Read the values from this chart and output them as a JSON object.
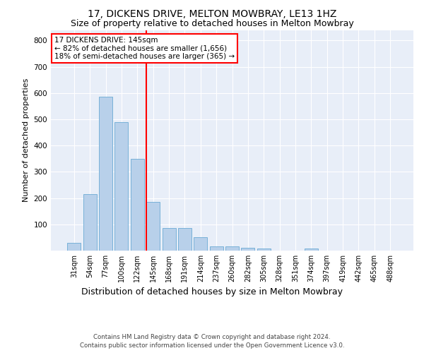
{
  "title": "17, DICKENS DRIVE, MELTON MOWBRAY, LE13 1HZ",
  "subtitle": "Size of property relative to detached houses in Melton Mowbray",
  "xlabel": "Distribution of detached houses by size in Melton Mowbray",
  "ylabel": "Number of detached properties",
  "categories": [
    "31sqm",
    "54sqm",
    "77sqm",
    "100sqm",
    "122sqm",
    "145sqm",
    "168sqm",
    "191sqm",
    "214sqm",
    "237sqm",
    "260sqm",
    "282sqm",
    "305sqm",
    "328sqm",
    "351sqm",
    "374sqm",
    "397sqm",
    "419sqm",
    "442sqm",
    "465sqm",
    "488sqm"
  ],
  "values": [
    30,
    215,
    585,
    490,
    350,
    185,
    85,
    85,
    50,
    15,
    15,
    12,
    8,
    0,
    0,
    7,
    0,
    0,
    0,
    0,
    0
  ],
  "bar_color": "#b8d0ea",
  "bar_edge_color": "#6aaad4",
  "red_line_index": 5,
  "annotation_line1": "17 DICKENS DRIVE: 145sqm",
  "annotation_line2": "← 82% of detached houses are smaller (1,656)",
  "annotation_line3": "18% of semi-detached houses are larger (365) →",
  "ylim": [
    0,
    840
  ],
  "yticks": [
    0,
    100,
    200,
    300,
    400,
    500,
    600,
    700,
    800
  ],
  "background_color": "#e8eef8",
  "footer1": "Contains HM Land Registry data © Crown copyright and database right 2024.",
  "footer2": "Contains public sector information licensed under the Open Government Licence v3.0.",
  "title_fontsize": 10,
  "subtitle_fontsize": 9,
  "ylabel_fontsize": 8,
  "xlabel_fontsize": 9,
  "tick_fontsize": 7,
  "annotation_fontsize": 7.5
}
